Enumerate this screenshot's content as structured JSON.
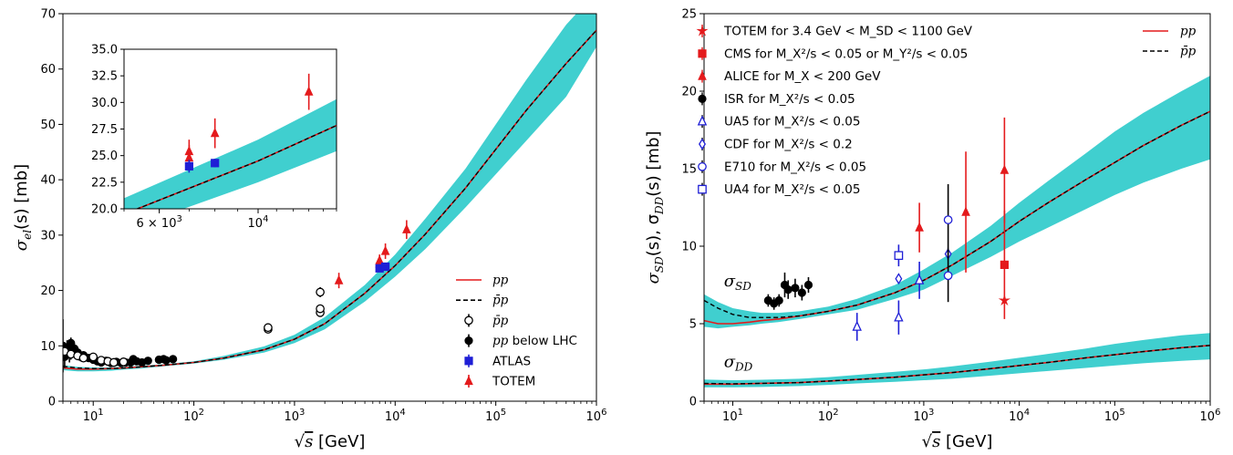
{
  "colors": {
    "band": "#40cfcf",
    "model_pp": "#e41a1c",
    "model_pbarp": "#000000",
    "red": "#e41a1c",
    "blue": "#1f1fd6",
    "black": "#000000"
  },
  "chart_data": [
    {
      "type": "scatter",
      "panel": "left",
      "xscale": "log",
      "xlim": [
        5,
        1000000
      ],
      "ylim": [
        0,
        70
      ],
      "xlabel_parts": [
        "√",
        "s",
        " [GeV]"
      ],
      "ylabel_parts": [
        "σ",
        "el",
        "(s)  [mb]"
      ],
      "xtick_labels": [
        {
          "x": 10,
          "base": "10",
          "exp": "1"
        },
        {
          "x": 100,
          "base": "10",
          "exp": "2"
        },
        {
          "x": 1000,
          "base": "10",
          "exp": "3"
        },
        {
          "x": 10000,
          "base": "10",
          "exp": "4"
        },
        {
          "x": 100000,
          "base": "10",
          "exp": "5"
        },
        {
          "x": 1000000,
          "base": "10",
          "exp": "6"
        }
      ],
      "yticks": [
        0,
        10,
        20,
        30,
        40,
        50,
        60,
        70
      ],
      "ytick_labels": [
        "0",
        "10",
        "20",
        "30",
        "40",
        "50",
        "60",
        "70"
      ],
      "legend": {
        "position": "lower-right",
        "entries": [
          {
            "kind": "line",
            "color": "#e41a1c",
            "dash": false,
            "label": "pp"
          },
          {
            "kind": "line",
            "color": "#000000",
            "dash": true,
            "label": "p̄p"
          },
          {
            "kind": "marker",
            "marker": "circle-open",
            "color": "#000000",
            "label": "p̄p"
          },
          {
            "kind": "marker",
            "marker": "circle",
            "color": "#000000",
            "label": "pp below LHC"
          },
          {
            "kind": "marker",
            "marker": "square",
            "color": "#1f1fd6",
            "label": "ATLAS"
          },
          {
            "kind": "marker",
            "marker": "triangle",
            "color": "#e41a1c",
            "label": "TOTEM"
          }
        ]
      },
      "model": {
        "x": [
          5,
          7,
          10,
          15,
          20,
          30,
          50,
          100,
          200,
          500,
          1000,
          2000,
          5000,
          10000,
          20000,
          50000,
          100000,
          200000,
          500000,
          1000000
        ],
        "pp": [
          6.0,
          5.8,
          5.8,
          5.9,
          6.0,
          6.2,
          6.5,
          7.0,
          7.8,
          9.3,
          11.2,
          14.0,
          19.5,
          24.5,
          30.2,
          38.5,
          45.5,
          52.5,
          61.0,
          67.0
        ],
        "pbarp": [
          6.3,
          6.0,
          5.9,
          5.9,
          6.0,
          6.2,
          6.5,
          7.0,
          7.8,
          9.3,
          11.2,
          14.0,
          19.5,
          24.5,
          30.2,
          38.5,
          45.5,
          52.5,
          61.0,
          67.0
        ],
        "band_low": [
          5.6,
          5.4,
          5.4,
          5.5,
          5.7,
          5.9,
          6.3,
          6.8,
          7.5,
          8.8,
          10.5,
          13.0,
          18.0,
          22.5,
          27.5,
          35.0,
          41.0,
          47.0,
          55.0,
          64.0
        ],
        "band_high": [
          6.5,
          6.2,
          6.1,
          6.1,
          6.2,
          6.4,
          6.7,
          7.2,
          8.2,
          9.9,
          12.0,
          15.2,
          21.0,
          26.5,
          33.0,
          42.0,
          50.0,
          58.0,
          68.0,
          74.0
        ]
      },
      "data": {
        "pbarp_open": [
          {
            "x": 5.2,
            "y": 9.0,
            "err": 1.2
          },
          {
            "x": 6.0,
            "y": 8.5,
            "err": 1.0
          },
          {
            "x": 7.0,
            "y": 8.2,
            "err": 0.8
          },
          {
            "x": 8.0,
            "y": 7.8,
            "err": 0.6
          },
          {
            "x": 10.0,
            "y": 8.0,
            "err": 0.5
          },
          {
            "x": 12.0,
            "y": 7.4,
            "err": 0.4
          },
          {
            "x": 14.0,
            "y": 7.2,
            "err": 0.4
          },
          {
            "x": 16.0,
            "y": 7.0,
            "err": 0.3
          },
          {
            "x": 20.0,
            "y": 7.1,
            "err": 0.3
          },
          {
            "x": 546,
            "y": 13.0,
            "err": 0.6
          },
          {
            "x": 546,
            "y": 13.3,
            "err": 0.6
          },
          {
            "x": 1800,
            "y": 16.0,
            "err": 0.6
          },
          {
            "x": 1800,
            "y": 16.7,
            "err": 0.6
          },
          {
            "x": 1800,
            "y": 19.7,
            "err": 0.9
          }
        ],
        "pp_below_lhc": [
          {
            "x": 5.0,
            "y": 10.0,
            "err": 4.8
          },
          {
            "x": 5.2,
            "y": 8.0,
            "err": 2.0
          },
          {
            "x": 5.5,
            "y": 9.5,
            "err": 1.5
          },
          {
            "x": 5.8,
            "y": 8.5,
            "err": 1.5
          },
          {
            "x": 6.0,
            "y": 10.5,
            "err": 1.0
          },
          {
            "x": 6.5,
            "y": 9.5,
            "err": 1.0
          },
          {
            "x": 7.0,
            "y": 8.8,
            "err": 0.9
          },
          {
            "x": 7.5,
            "y": 8.0,
            "err": 0.8
          },
          {
            "x": 8.0,
            "y": 8.3,
            "err": 0.7
          },
          {
            "x": 9.0,
            "y": 7.8,
            "err": 0.6
          },
          {
            "x": 10.0,
            "y": 7.5,
            "err": 0.5
          },
          {
            "x": 11.0,
            "y": 7.2,
            "err": 0.5
          },
          {
            "x": 12.0,
            "y": 7.0,
            "err": 0.4
          },
          {
            "x": 13.5,
            "y": 7.3,
            "err": 0.4
          },
          {
            "x": 15.0,
            "y": 6.9,
            "err": 0.4
          },
          {
            "x": 17.0,
            "y": 7.1,
            "err": 0.3
          },
          {
            "x": 19.0,
            "y": 6.9,
            "err": 0.3
          },
          {
            "x": 21.0,
            "y": 7.0,
            "err": 0.3
          },
          {
            "x": 23.5,
            "y": 7.0,
            "err": 0.3
          },
          {
            "x": 25.0,
            "y": 7.6,
            "err": 0.4
          },
          {
            "x": 27.0,
            "y": 7.2,
            "err": 0.3
          },
          {
            "x": 30.5,
            "y": 7.0,
            "err": 0.3
          },
          {
            "x": 35.0,
            "y": 7.3,
            "err": 0.3
          },
          {
            "x": 45.0,
            "y": 7.5,
            "err": 0.4
          },
          {
            "x": 50.0,
            "y": 7.6,
            "err": 0.4
          },
          {
            "x": 53.0,
            "y": 7.4,
            "err": 0.4
          },
          {
            "x": 62.0,
            "y": 7.6,
            "err": 0.4
          }
        ],
        "atlas": [
          {
            "x": 7000,
            "y": 24.0,
            "err": 0.6
          },
          {
            "x": 8000,
            "y": 24.3,
            "err": 0.4
          }
        ],
        "totem": [
          {
            "x": 2760,
            "y": 21.8,
            "err": 1.4
          },
          {
            "x": 7000,
            "y": 24.8,
            "err": 1.2
          },
          {
            "x": 7000,
            "y": 25.4,
            "err": 1.1
          },
          {
            "x": 8000,
            "y": 27.1,
            "err": 1.4
          },
          {
            "x": 13000,
            "y": 31.0,
            "err": 1.7
          }
        ]
      },
      "inset": {
        "xlim": [
          5000,
          15000
        ],
        "ylim": [
          20,
          35
        ],
        "yticks": [
          20,
          22.5,
          25,
          27.5,
          30,
          32.5,
          35
        ],
        "ytick_labels": [
          "20.0",
          "22.5",
          "25.0",
          "27.5",
          "30.0",
          "32.5",
          "35.0"
        ],
        "xtick_labels": [
          {
            "x": 6000,
            "pre": "6 × ",
            "base": "10",
            "exp": "3"
          },
          {
            "x": 10000,
            "pre": "",
            "base": "10",
            "exp": "4"
          }
        ]
      }
    },
    {
      "type": "scatter",
      "panel": "right",
      "xscale": "log",
      "xlim": [
        5,
        1000000
      ],
      "ylim": [
        0,
        25
      ],
      "xlabel_parts": [
        "√",
        "s",
        " [GeV]"
      ],
      "ylabel_parts": [
        "σ",
        "SD",
        "(s),  σ",
        "DD",
        "(s)  [mb]"
      ],
      "xtick_labels": [
        {
          "x": 10,
          "base": "10",
          "exp": "1"
        },
        {
          "x": 100,
          "base": "10",
          "exp": "2"
        },
        {
          "x": 1000,
          "base": "10",
          "exp": "3"
        },
        {
          "x": 10000,
          "base": "10",
          "exp": "4"
        },
        {
          "x": 100000,
          "base": "10",
          "exp": "5"
        },
        {
          "x": 1000000,
          "base": "10",
          "exp": "6"
        }
      ],
      "yticks": [
        0,
        5,
        10,
        15,
        20,
        25
      ],
      "ytick_labels": [
        "0",
        "5",
        "10",
        "15",
        "20",
        "25"
      ],
      "curve_labels": [
        {
          "x": 9,
          "y": 7.4,
          "main": "σ",
          "sub": "SD"
        },
        {
          "x": 9,
          "y": 2.2,
          "main": "σ",
          "sub": "DD"
        }
      ],
      "legend_models": {
        "position": "upper-right",
        "entries": [
          {
            "kind": "line",
            "color": "#e41a1c",
            "dash": false,
            "label": "pp"
          },
          {
            "kind": "line",
            "color": "#000000",
            "dash": true,
            "label": "p̄p"
          }
        ]
      },
      "legend_data": {
        "position": "upper-left",
        "entries": [
          {
            "marker": "star",
            "color": "#e41a1c",
            "text": "TOTEM for 3.4 GeV  < M_SD <  1100 GeV"
          },
          {
            "marker": "square",
            "color": "#e41a1c",
            "text": "CMS for M_X²/s < 0.05 or M_Y²/s < 0.05"
          },
          {
            "marker": "triangle",
            "color": "#e41a1c",
            "text": "ALICE for M_X < 200 GeV"
          },
          {
            "marker": "circle",
            "color": "#000000",
            "text": "ISR for M_X²/s < 0.05"
          },
          {
            "marker": "triangle-open",
            "color": "#1f1fd6",
            "text": "UA5 for M_X²/s < 0.05"
          },
          {
            "marker": "diamond-open",
            "color": "#1f1fd6",
            "text": "CDF for M_X²/s < 0.2"
          },
          {
            "marker": "circle-open",
            "color": "#1f1fd6",
            "text": "E710 for M_X²/s < 0.05"
          },
          {
            "marker": "square-open",
            "color": "#1f1fd6",
            "text": "UA4 for M_X²/s < 0.05"
          }
        ]
      },
      "model_sd": {
        "x": [
          5,
          7,
          10,
          15,
          20,
          30,
          50,
          100,
          200,
          500,
          1000,
          2000,
          5000,
          10000,
          20000,
          50000,
          100000,
          200000,
          500000,
          1000000
        ],
        "pp": [
          5.2,
          5.0,
          5.0,
          5.1,
          5.2,
          5.3,
          5.5,
          5.8,
          6.2,
          7.0,
          7.8,
          8.8,
          10.3,
          11.6,
          12.8,
          14.3,
          15.4,
          16.5,
          17.8,
          18.7
        ],
        "pbarp": [
          6.5,
          6.0,
          5.6,
          5.4,
          5.4,
          5.4,
          5.5,
          5.8,
          6.2,
          7.0,
          7.8,
          8.8,
          10.3,
          11.6,
          12.8,
          14.3,
          15.4,
          16.5,
          17.8,
          18.7
        ],
        "band_low": [
          4.8,
          4.7,
          4.8,
          4.9,
          5.0,
          5.1,
          5.3,
          5.6,
          5.9,
          6.6,
          7.2,
          8.1,
          9.3,
          10.3,
          11.2,
          12.4,
          13.3,
          14.1,
          15.0,
          15.6
        ],
        "band_high": [
          6.9,
          6.4,
          6.0,
          5.8,
          5.7,
          5.7,
          5.8,
          6.1,
          6.6,
          7.5,
          8.5,
          9.6,
          11.3,
          12.8,
          14.2,
          16.0,
          17.4,
          18.6,
          20.0,
          21.0
        ]
      },
      "model_dd": {
        "x": [
          5,
          10,
          20,
          50,
          100,
          200,
          500,
          1000,
          2000,
          5000,
          10000,
          20000,
          50000,
          100000,
          200000,
          500000,
          1000000
        ],
        "pp": [
          1.1,
          1.1,
          1.15,
          1.2,
          1.3,
          1.4,
          1.55,
          1.7,
          1.85,
          2.1,
          2.3,
          2.5,
          2.8,
          3.0,
          3.2,
          3.45,
          3.6
        ],
        "pbarp": [
          1.15,
          1.12,
          1.15,
          1.2,
          1.3,
          1.4,
          1.55,
          1.7,
          1.85,
          2.1,
          2.3,
          2.5,
          2.8,
          3.0,
          3.2,
          3.45,
          3.6
        ],
        "band_low": [
          0.9,
          0.9,
          0.92,
          0.98,
          1.05,
          1.15,
          1.25,
          1.35,
          1.45,
          1.65,
          1.8,
          1.95,
          2.15,
          2.3,
          2.45,
          2.6,
          2.7
        ],
        "band_high": [
          1.4,
          1.35,
          1.38,
          1.45,
          1.55,
          1.7,
          1.9,
          2.05,
          2.25,
          2.55,
          2.8,
          3.05,
          3.4,
          3.7,
          3.95,
          4.25,
          4.4
        ]
      },
      "data": {
        "totem_star": [
          {
            "x": 7000,
            "y": 6.5,
            "err": 1.3
          }
        ],
        "cms": [
          {
            "x": 7000,
            "y": 8.8,
            "err": 3.5
          }
        ],
        "alice": [
          {
            "x": 900,
            "y": 11.2,
            "err": 1.6
          },
          {
            "x": 2760,
            "y": 12.2,
            "err": 3.9
          },
          {
            "x": 7000,
            "y": 14.9,
            "err": 3.4
          }
        ],
        "isr": [
          {
            "x": 23.5,
            "y": 6.5,
            "err": 0.4
          },
          {
            "x": 27,
            "y": 6.3,
            "err": 0.4
          },
          {
            "x": 30.5,
            "y": 6.5,
            "err": 0.4
          },
          {
            "x": 35,
            "y": 7.5,
            "err": 0.8
          },
          {
            "x": 38,
            "y": 7.2,
            "err": 0.6
          },
          {
            "x": 45,
            "y": 7.3,
            "err": 0.6
          },
          {
            "x": 53,
            "y": 7.0,
            "err": 0.5
          },
          {
            "x": 62,
            "y": 7.5,
            "err": 0.5
          }
        ],
        "ua5": [
          {
            "x": 200,
            "y": 4.8,
            "err": 0.9
          },
          {
            "x": 546,
            "y": 5.4,
            "err": 1.1
          },
          {
            "x": 900,
            "y": 7.8,
            "err": 1.2
          }
        ],
        "cdf": [
          {
            "x": 546,
            "y": 7.9,
            "err": 0.3
          },
          {
            "x": 1800,
            "y": 9.5,
            "err": 0.4
          }
        ],
        "e710": [
          {
            "x": 1800,
            "y": 8.1,
            "err": 1.7
          },
          {
            "x": 1800,
            "y": 11.7,
            "err": 2.3
          }
        ],
        "ua4": [
          {
            "x": 546,
            "y": 9.4,
            "err": 0.7
          }
        ]
      }
    }
  ]
}
